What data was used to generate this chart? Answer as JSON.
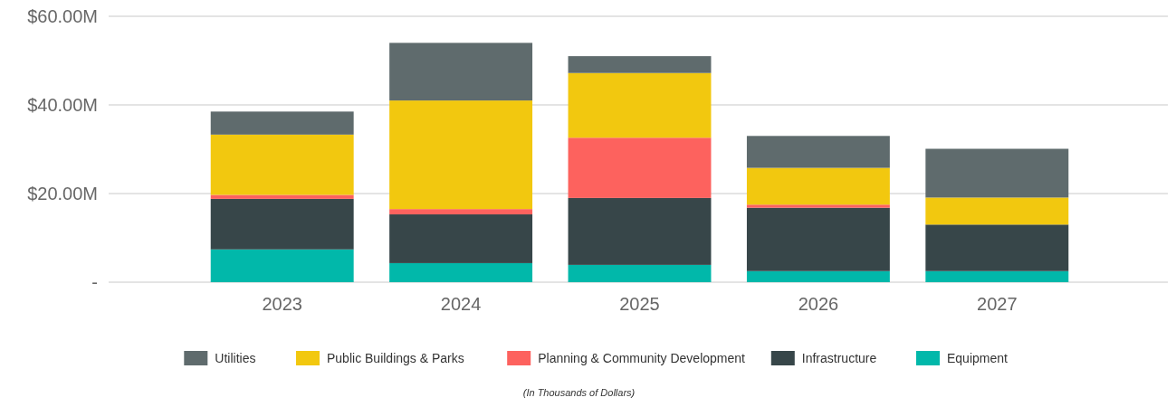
{
  "chart_data": {
    "type": "bar",
    "stacked": true,
    "categories": [
      "2023",
      "2024",
      "2025",
      "2026",
      "2027"
    ],
    "series": [
      {
        "name": "Equipment",
        "color": "#01b8aa",
        "values": [
          7.4,
          4.3,
          3.9,
          2.5,
          2.5
        ]
      },
      {
        "name": "Infrastructure",
        "color": "#374649",
        "values": [
          11.4,
          11.0,
          15.1,
          14.3,
          10.5
        ]
      },
      {
        "name": "Planning & Community Development",
        "color": "#fd625e",
        "values": [
          0.9,
          1.2,
          13.6,
          0.7,
          0
        ]
      },
      {
        "name": "Public Buildings & Parks",
        "color": "#f2c80f",
        "values": [
          13.6,
          24.5,
          14.6,
          8.3,
          6.1
        ]
      },
      {
        "name": "Utilities",
        "color": "#5f6b6d",
        "values": [
          5.2,
          13.0,
          3.8,
          7.2,
          11.0
        ]
      }
    ],
    "ylim": [
      0,
      60
    ],
    "yticks": [
      {
        "value": 0,
        "label": "-"
      },
      {
        "value": 20,
        "label": "$20.00M"
      },
      {
        "value": 40,
        "label": "$40.00M"
      },
      {
        "value": 60,
        "label": "$60.00M"
      }
    ],
    "grid": "y",
    "legend": "bottom",
    "annotations": [
      "(In Thousands of Dollars)"
    ]
  }
}
